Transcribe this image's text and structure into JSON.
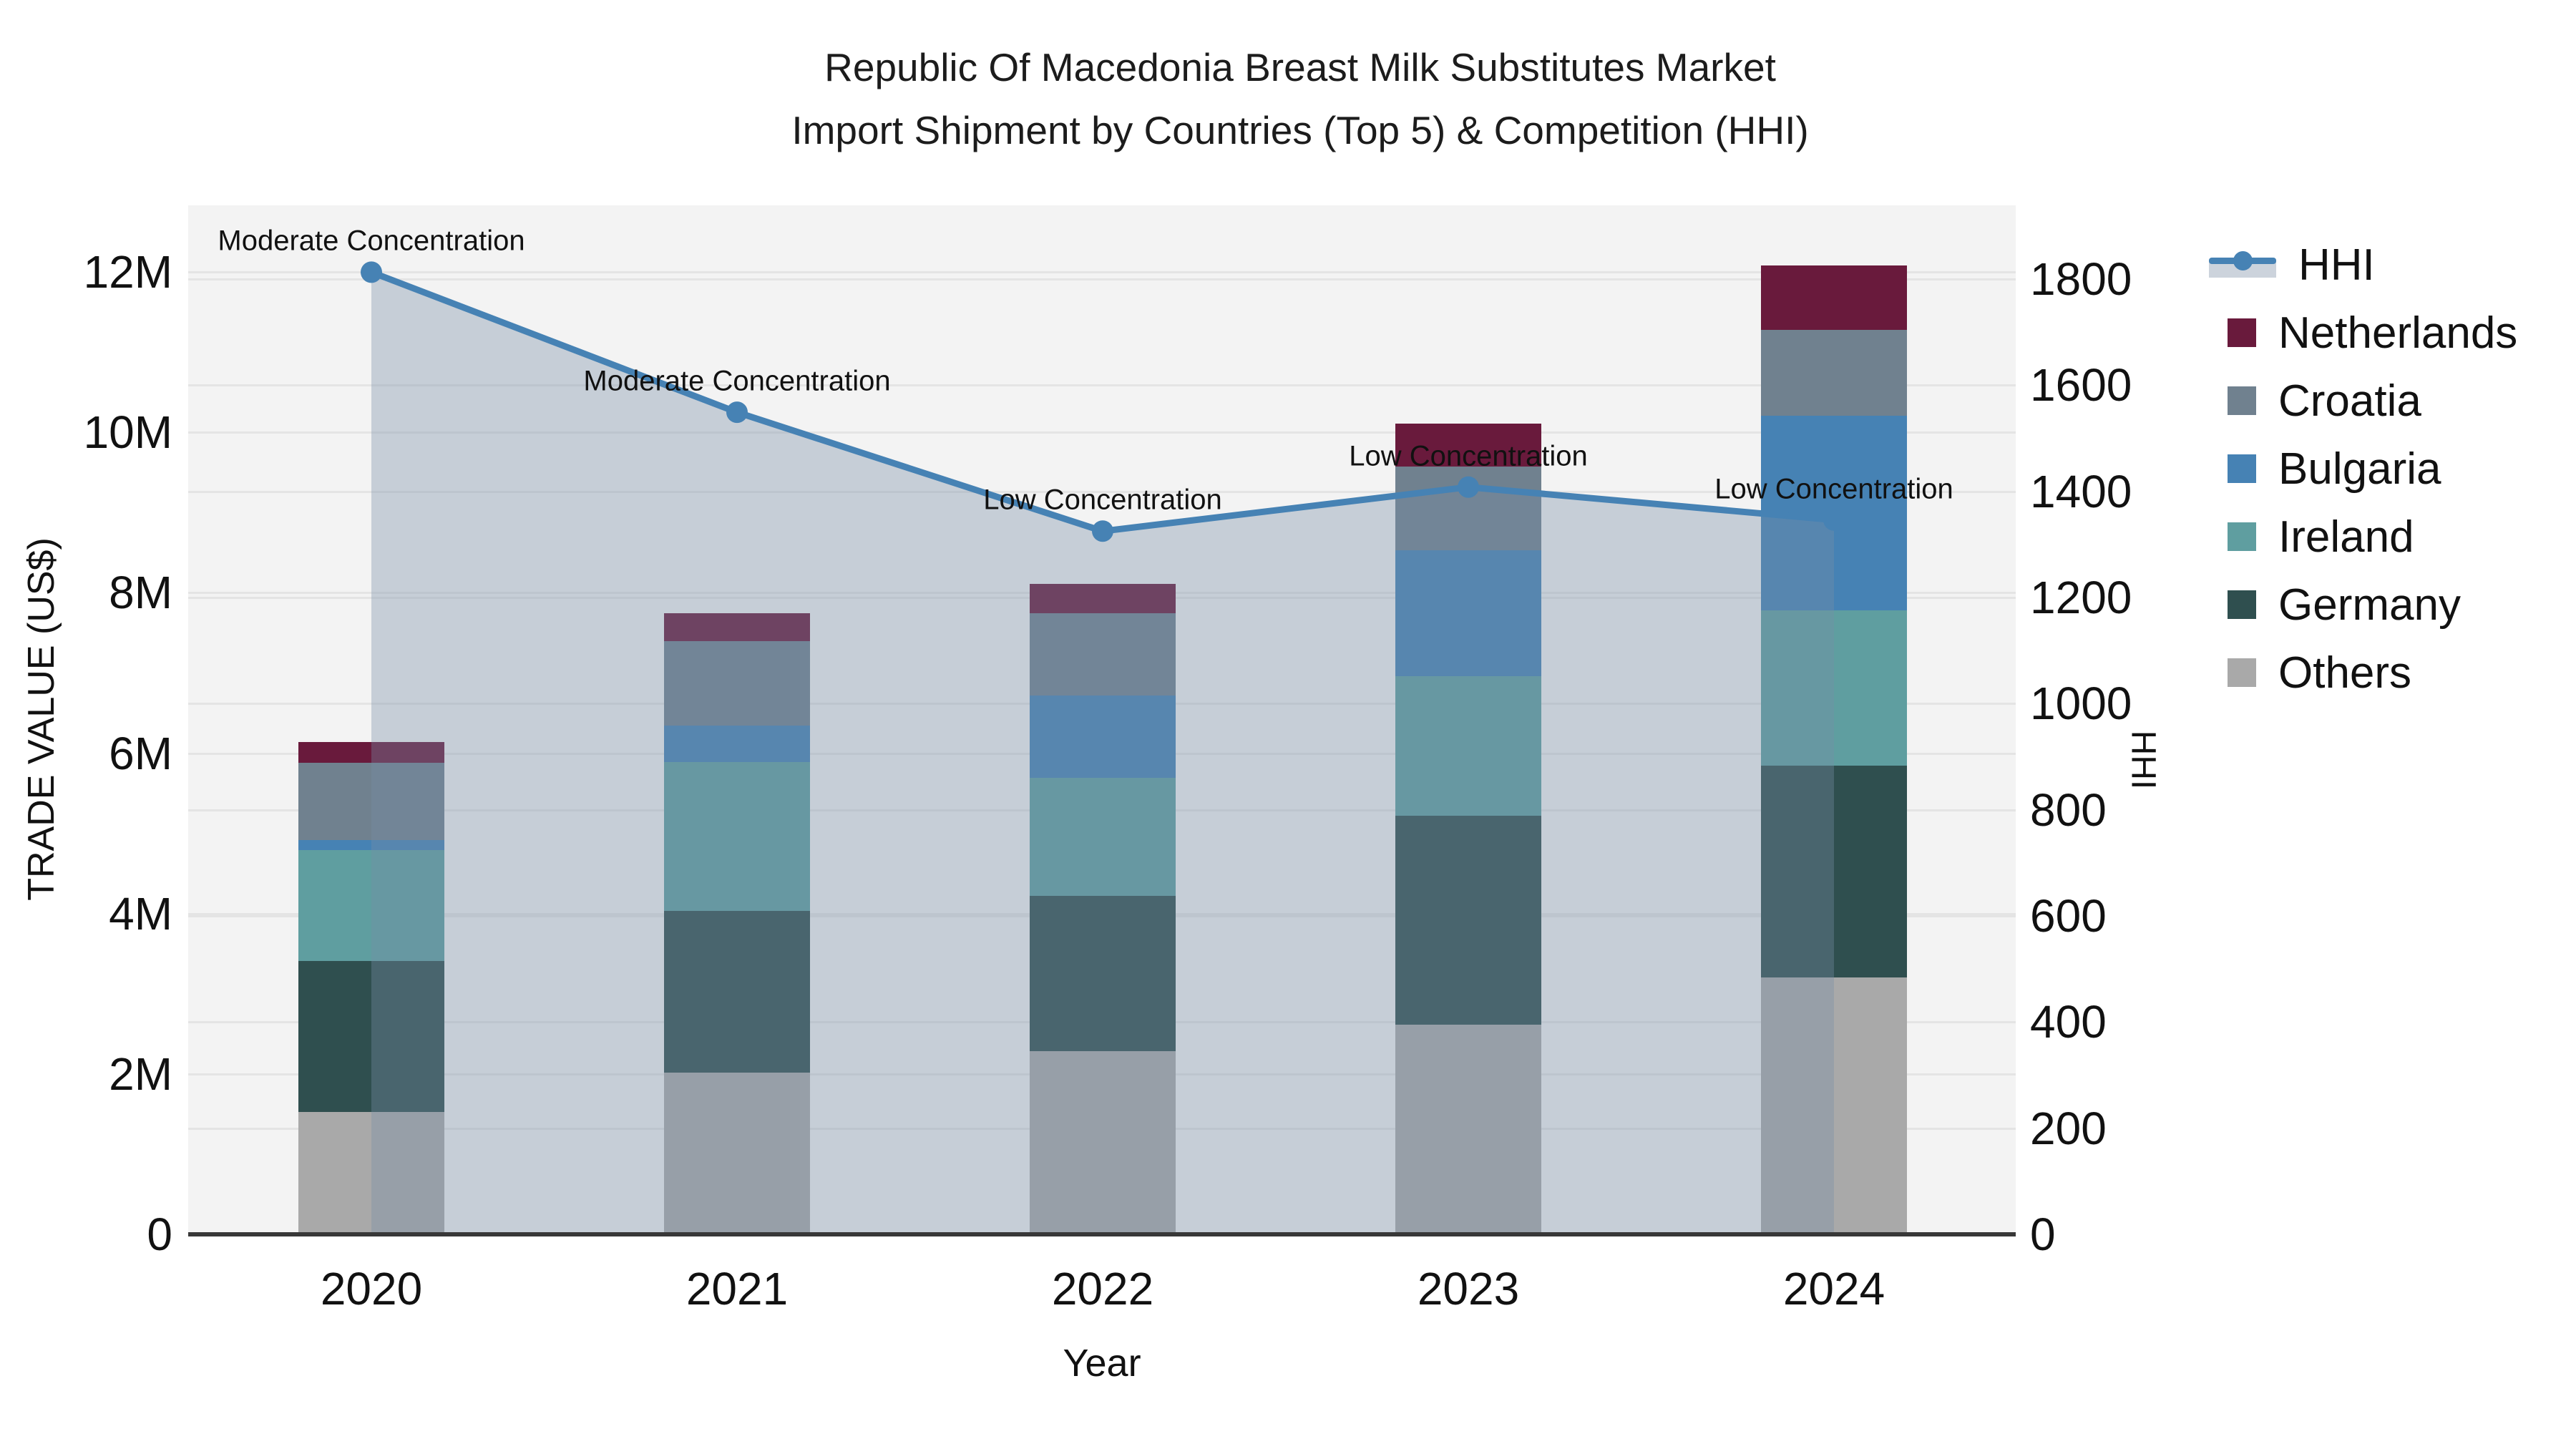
{
  "title": {
    "line1": "Republic Of Macedonia Breast Milk Substitutes Market",
    "line2": "Import Shipment by Countries (Top 5) & Competition (HHI)"
  },
  "chart_data": {
    "type": "bar+line",
    "title": "Republic Of Macedonia Breast Milk Substitutes Market Import Shipment by Countries (Top 5) & Competition (HHI)",
    "categories": [
      "2020",
      "2021",
      "2022",
      "2023",
      "2024"
    ],
    "stack_order_bottom_to_top": [
      "Others",
      "Germany",
      "Ireland",
      "Bulgaria",
      "Croatia",
      "Netherlands"
    ],
    "series": [
      {
        "name": "Others",
        "color": "#a9a9a9",
        "values": [
          1.53,
          2.02,
          2.28,
          2.61,
          3.2
        ]
      },
      {
        "name": "Germany",
        "color": "#2f4f4f",
        "values": [
          1.88,
          2.01,
          1.94,
          2.61,
          2.64
        ]
      },
      {
        "name": "Ireland",
        "color": "#5f9ea0",
        "values": [
          1.38,
          1.86,
          1.47,
          1.74,
          1.94
        ]
      },
      {
        "name": "Bulgaria",
        "color": "#4682b4",
        "values": [
          0.13,
          0.45,
          1.03,
          1.57,
          2.43
        ]
      },
      {
        "name": "Croatia",
        "color": "#70818f",
        "values": [
          0.96,
          1.06,
          1.02,
          1.04,
          1.07
        ]
      },
      {
        "name": "Netherlands",
        "color": "#691a3c",
        "values": [
          0.26,
          0.34,
          0.37,
          0.54,
          0.8
        ]
      }
    ],
    "bar_totals_musd": [
      6.14,
      7.74,
      8.11,
      10.11,
      12.08
    ],
    "hhi": {
      "name": "HHI",
      "line_color": "#4682b4",
      "area_fill": "rgba(120,140,165,0.36)",
      "values": [
        1813,
        1549,
        1325,
        1408,
        1346
      ]
    },
    "annotations": [
      {
        "year": "2020",
        "text": "Moderate Concentration"
      },
      {
        "year": "2021",
        "text": "Moderate Concentration"
      },
      {
        "year": "2022",
        "text": "Low Concentration"
      },
      {
        "year": "2023",
        "text": "Low Concentration"
      },
      {
        "year": "2024",
        "text": "Low Concentration"
      }
    ],
    "left_axis": {
      "label": "TRADE VALUE (US$)",
      "tick_labels": [
        "0",
        "2M",
        "4M",
        "6M",
        "8M",
        "10M",
        "12M"
      ],
      "tick_values_musd": [
        0,
        2,
        4,
        6,
        8,
        10,
        12
      ],
      "range_musd": [
        0,
        12.83
      ],
      "grid": true
    },
    "right_axis": {
      "label": "HHI",
      "tick_labels": [
        "0",
        "200",
        "400",
        "600",
        "800",
        "1000",
        "1200",
        "1400",
        "1600",
        "1800"
      ],
      "tick_values": [
        0,
        200,
        400,
        600,
        800,
        1000,
        1200,
        1400,
        1600,
        1800
      ],
      "range": [
        0,
        1938
      ],
      "grid": true
    },
    "x_axis": {
      "label": "Year"
    },
    "legend_position": "right"
  },
  "legend": {
    "items": [
      {
        "label": "HHI",
        "type": "line"
      },
      {
        "label": "Netherlands",
        "type": "swatch",
        "color": "#691a3c"
      },
      {
        "label": "Croatia",
        "type": "swatch",
        "color": "#70818f"
      },
      {
        "label": "Bulgaria",
        "type": "swatch",
        "color": "#4682b4"
      },
      {
        "label": "Ireland",
        "type": "swatch",
        "color": "#5f9ea0"
      },
      {
        "label": "Germany",
        "type": "swatch",
        "color": "#2f4f4f"
      },
      {
        "label": "Others",
        "type": "swatch",
        "color": "#a9a9a9"
      }
    ]
  }
}
